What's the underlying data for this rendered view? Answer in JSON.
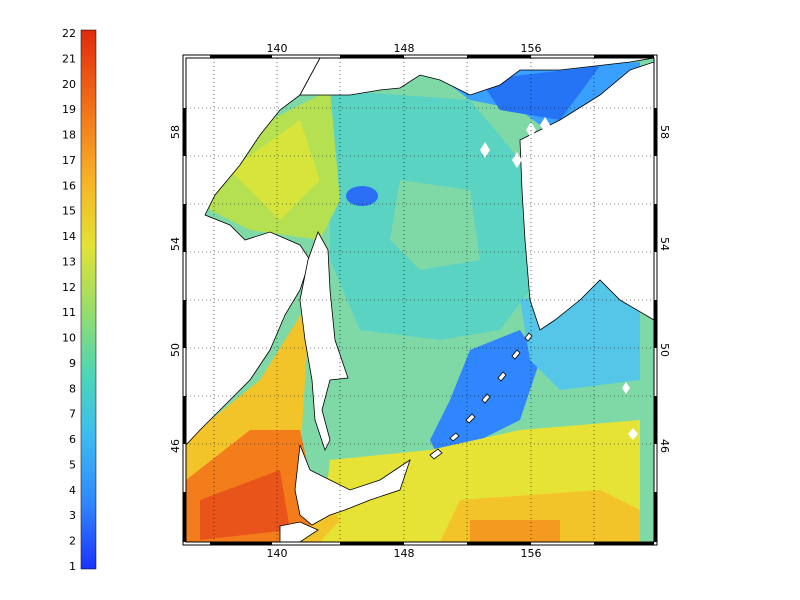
{
  "colorbar": {
    "labels": [
      "22",
      "21",
      "20",
      "19",
      "18",
      "17",
      "16",
      "15",
      "14",
      "13",
      "12",
      "11",
      "10",
      "9",
      "8",
      "7",
      "6",
      "5",
      "4",
      "3",
      "2",
      "1"
    ],
    "min": 1,
    "max": 22,
    "colormap": [
      "#1a33ff",
      "#1f5cff",
      "#2f86ff",
      "#3aa3ff",
      "#3dbdf0",
      "#3ecfd7",
      "#4cd6b6",
      "#6fd98e",
      "#96dd6a",
      "#bfe246",
      "#e3e233",
      "#f3cf2b",
      "#f7b325",
      "#f7931f",
      "#f26f18",
      "#e94d12",
      "#df2b0d"
    ]
  },
  "map": {
    "top_lon_labels": [
      "140",
      "148",
      "156"
    ],
    "bottom_lon_labels": [
      "140",
      "148",
      "156"
    ],
    "left_lat_labels": [
      "58",
      "54",
      "50",
      "46"
    ],
    "right_lat_labels": [
      "58",
      "54",
      "50",
      "46"
    ],
    "colors": {
      "frame": "#000000",
      "land": "#ffffff",
      "grid": "#000000"
    }
  }
}
